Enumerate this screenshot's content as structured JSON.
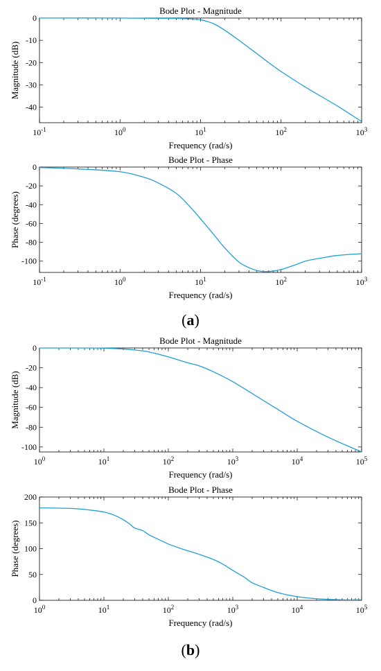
{
  "panels": [
    {
      "label_open": "(",
      "label_letter": "a",
      "label_close": ")"
    },
    {
      "label_open": "(",
      "label_letter": "b",
      "label_close": ")"
    }
  ],
  "line_color": "#1f9fd4",
  "chart_data": [
    {
      "type": "line",
      "title": "Bode Plot - Magnitude",
      "xlabel": "Frequency (rad/s)",
      "ylabel": "Magnitude (dB)",
      "xscale": "log",
      "xlim": [
        0.1,
        1000
      ],
      "ylim": [
        -47,
        0
      ],
      "xticks": [
        0.1,
        1,
        10,
        100,
        1000
      ],
      "xtick_labels": [
        [
          "10",
          "-1"
        ],
        [
          "10",
          "0"
        ],
        [
          "10",
          "1"
        ],
        [
          "10",
          "2"
        ],
        [
          "10",
          "3"
        ]
      ],
      "yticks": [
        0,
        -10,
        -20,
        -30,
        -40
      ],
      "ytick_labels": [
        "0",
        "-10",
        "-20",
        "-30",
        "-40"
      ],
      "series": [
        {
          "x": [
            0.1,
            1,
            5,
            8,
            10,
            12,
            15,
            20,
            30,
            50,
            70,
            100,
            200,
            500,
            1000
          ],
          "y": [
            0,
            0,
            -0.2,
            -0.5,
            -0.8,
            -1.5,
            -2.8,
            -5.5,
            -10,
            -16,
            -20,
            -24,
            -31,
            -39.5,
            -46.5
          ]
        }
      ]
    },
    {
      "type": "line",
      "title": "Bode Plot - Phase",
      "xlabel": "Frequency (rad/s)",
      "ylabel": "Phase (degrees)",
      "xscale": "log",
      "xlim": [
        0.1,
        1000
      ],
      "ylim": [
        -112,
        0
      ],
      "xticks": [
        0.1,
        1,
        10,
        100,
        1000
      ],
      "xtick_labels": [
        [
          "10",
          "-1"
        ],
        [
          "10",
          "0"
        ],
        [
          "10",
          "1"
        ],
        [
          "10",
          "2"
        ],
        [
          "10",
          "3"
        ]
      ],
      "yticks": [
        0,
        -20,
        -40,
        -60,
        -80,
        -100
      ],
      "ytick_labels": [
        "0",
        "-20",
        "-40",
        "-60",
        "-80",
        "-100"
      ],
      "series": [
        {
          "x": [
            0.1,
            0.3,
            1,
            2,
            3,
            5,
            7,
            10,
            15,
            20,
            30,
            40,
            50,
            60,
            70,
            80,
            100,
            150,
            200,
            300,
            500,
            1000
          ],
          "y": [
            -0.5,
            -2,
            -5,
            -11,
            -17,
            -28,
            -40,
            -55,
            -73,
            -86,
            -101,
            -107,
            -110,
            -111,
            -111,
            -110.5,
            -109,
            -104,
            -100,
            -97,
            -94,
            -92
          ]
        }
      ]
    },
    {
      "type": "line",
      "title": "Bode Plot - Magnitude",
      "xlabel": "Frequency (rad/s)",
      "ylabel": "Magnitude (dB)",
      "xscale": "log",
      "xlim": [
        1,
        100000
      ],
      "ylim": [
        -105,
        0
      ],
      "xticks": [
        1,
        10,
        100,
        1000,
        10000,
        100000
      ],
      "xtick_labels": [
        [
          "10",
          "0"
        ],
        [
          "10",
          "1"
        ],
        [
          "10",
          "2"
        ],
        [
          "10",
          "3"
        ],
        [
          "10",
          "4"
        ],
        [
          "10",
          "5"
        ]
      ],
      "yticks": [
        0,
        -20,
        -40,
        -60,
        -80,
        -100
      ],
      "ytick_labels": [
        "0",
        "-20",
        "-40",
        "-60",
        "-80",
        "-100"
      ],
      "series": [
        {
          "x": [
            1,
            5,
            10,
            20,
            30,
            50,
            100,
            200,
            300,
            500,
            1000,
            2000,
            5000,
            10000,
            30000,
            100000
          ],
          "y": [
            0,
            0,
            -0.2,
            -1,
            -2,
            -4,
            -9,
            -15,
            -18,
            -24,
            -34,
            -46,
            -62,
            -74,
            -90,
            -105
          ]
        }
      ]
    },
    {
      "type": "line",
      "title": "Bode Plot - Phase",
      "xlabel": "Frequency (rad/s)",
      "ylabel": "Phase (degrees)",
      "xscale": "log",
      "xlim": [
        1,
        100000
      ],
      "ylim": [
        0,
        200
      ],
      "xticks": [
        1,
        10,
        100,
        1000,
        10000,
        100000
      ],
      "xtick_labels": [
        [
          "10",
          "0"
        ],
        [
          "10",
          "1"
        ],
        [
          "10",
          "2"
        ],
        [
          "10",
          "3"
        ],
        [
          "10",
          "4"
        ],
        [
          "10",
          "5"
        ]
      ],
      "yticks": [
        0,
        50,
        100,
        150,
        200
      ],
      "ytick_labels": [
        "0",
        "50",
        "100",
        "150",
        "200"
      ],
      "series": [
        {
          "x": [
            1,
            3,
            5,
            10,
            15,
            20,
            25,
            30,
            40,
            50,
            70,
            100,
            150,
            200,
            300,
            500,
            700,
            1000,
            1500,
            2000,
            3000,
            5000,
            10000,
            20000,
            50000,
            100000
          ],
          "y": [
            179,
            178,
            176,
            171,
            164,
            156,
            148,
            140,
            135,
            127,
            118,
            109,
            101,
            96,
            89,
            79,
            70,
            58,
            45,
            34,
            25,
            15,
            7,
            3,
            1,
            1
          ]
        }
      ]
    }
  ]
}
